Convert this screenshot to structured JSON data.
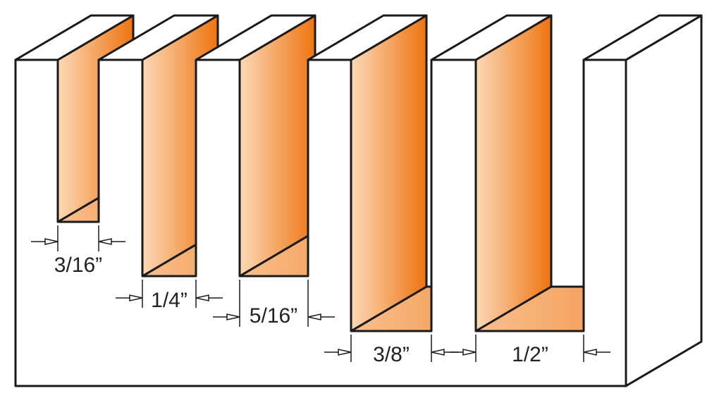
{
  "dimensions": [
    {
      "label": "3/16”"
    },
    {
      "label": "1/4”"
    },
    {
      "label": "5/16”"
    },
    {
      "label": "3/8”"
    },
    {
      "label": "1/2”"
    }
  ]
}
